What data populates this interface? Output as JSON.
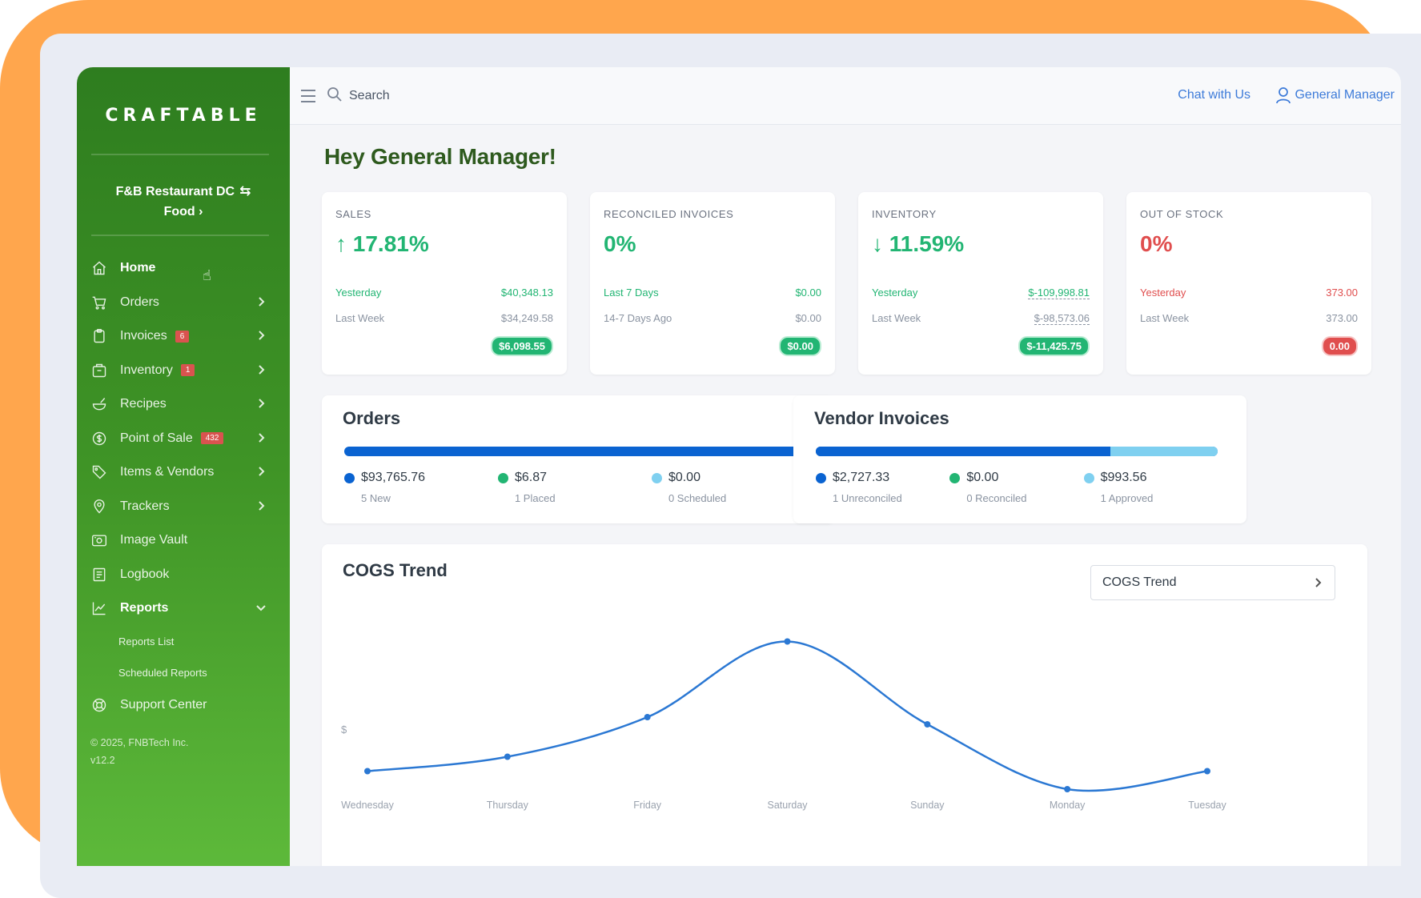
{
  "brand": "CRAFTABLE",
  "org": {
    "name": "F&B Restaurant DC",
    "sub": "Food"
  },
  "nav": {
    "items": [
      {
        "label": "Home",
        "icon": "home-icon"
      },
      {
        "label": "Orders",
        "icon": "cart-icon"
      },
      {
        "label": "Invoices",
        "icon": "clipboard-icon",
        "badge": "6"
      },
      {
        "label": "Inventory",
        "icon": "box-icon",
        "badge": "1"
      },
      {
        "label": "Recipes",
        "icon": "bowl-icon"
      },
      {
        "label": "Point of Sale",
        "icon": "dollar-icon",
        "badge": "432"
      },
      {
        "label": "Items & Vendors",
        "icon": "tag-icon"
      },
      {
        "label": "Trackers",
        "icon": "pin-icon"
      },
      {
        "label": "Image Vault",
        "icon": "camera-icon"
      },
      {
        "label": "Logbook",
        "icon": "book-icon"
      },
      {
        "label": "Reports",
        "icon": "chart-icon"
      }
    ],
    "reports_sub": [
      "Reports List",
      "Scheduled Reports"
    ],
    "support": "Support Center"
  },
  "copyright": {
    "line1": "© 2025, FNBTech Inc.",
    "line2": "v12.2"
  },
  "topbar": {
    "search_placeholder": "Search",
    "chat": "Chat with Us",
    "user": "General Manager"
  },
  "greeting": "Hey General Manager!",
  "kpis": [
    {
      "label": "SALES",
      "value": "↑ 17.81%",
      "r1_label": "Yesterday",
      "r1_value": "$40,348.13",
      "r2_label": "Last Week",
      "r2_value": "$34,249.58",
      "pill": "$6,098.55"
    },
    {
      "label": "RECONCILED INVOICES",
      "value": "0%",
      "r1_label": "Last 7 Days",
      "r1_value": "$0.00",
      "r2_label": "14-7 Days Ago",
      "r2_value": "$0.00",
      "pill": "$0.00"
    },
    {
      "label": "INVENTORY",
      "value": "↓ 11.59%",
      "r1_label": "Yesterday",
      "r1_value": "$-109,998.81",
      "r2_label": "Last Week",
      "r2_value": "$-98,573.06",
      "pill": "$-11,425.75"
    },
    {
      "label": "OUT OF STOCK",
      "value": "0%",
      "r1_label": "Yesterday",
      "r1_value": "373.00",
      "r2_label": "Last Week",
      "r2_value": "373.00",
      "pill": "0.00"
    }
  ],
  "orders": {
    "title": "Orders",
    "bar_fractions": [
      1.0,
      0.0,
      0.0
    ],
    "legend": [
      {
        "amount": "$93,765.76",
        "sub": "5 New",
        "color": "#0A63D1"
      },
      {
        "amount": "$6.87",
        "sub": "1 Placed",
        "color": "#22B573"
      },
      {
        "amount": "$0.00",
        "sub": "0 Scheduled",
        "color": "#7FD0F0"
      }
    ]
  },
  "vendor_invoices": {
    "title": "Vendor Invoices",
    "bar_fractions": [
      0.733,
      0.0,
      0.267
    ],
    "legend": [
      {
        "amount": "$2,727.33",
        "sub": "1 Unreconciled",
        "color": "#0A63D1"
      },
      {
        "amount": "$0.00",
        "sub": "0 Reconciled",
        "color": "#22B573"
      },
      {
        "amount": "$993.56",
        "sub": "1 Approved",
        "color": "#7FD0F0"
      }
    ]
  },
  "cogs": {
    "title": "COGS Trend",
    "select_value": "COGS Trend"
  },
  "chart_data": {
    "type": "line",
    "categories": [
      "Wednesday",
      "Thursday",
      "Friday",
      "Saturday",
      "Sunday",
      "Monday",
      "Tuesday"
    ],
    "values": [
      17,
      21,
      32,
      53,
      30,
      12,
      17
    ],
    "ylabel": "$",
    "ylim": [
      0,
      60
    ],
    "grid": false,
    "color": "#2B78D3"
  }
}
